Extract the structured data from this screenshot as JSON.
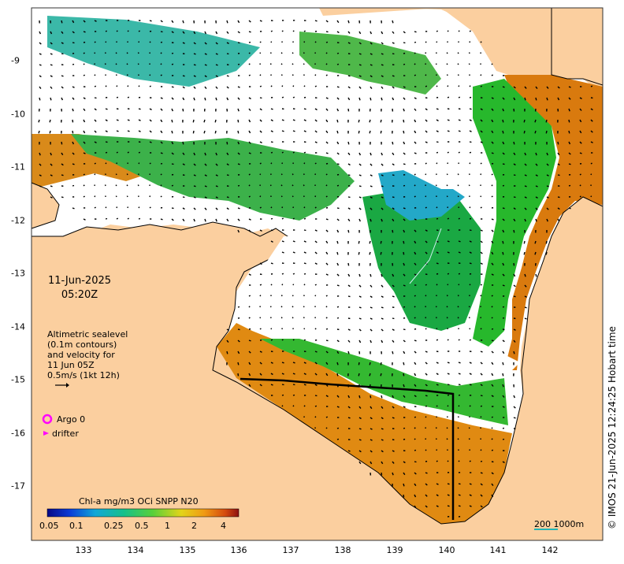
{
  "map": {
    "date_line1": "11-Jun-2025",
    "date_line2": "05:20Z",
    "legend_lines": [
      "Altimetric sealevel",
      "(0.1m contours)",
      "and velocity for",
      "11 Jun 05Z",
      "0.5m/s (1kt 12h)"
    ],
    "argo_label": "Argo 0",
    "drifter_label": "drifter",
    "colorbar_title": "Chl-a mg/m3 OCi SNPP N20",
    "colorbar_ticks": [
      "0.05",
      "0.1",
      "0.25",
      "0.5",
      "1",
      "2",
      "4"
    ],
    "scale_label": "200 1000m",
    "credit": "© IMOS 21-Jun-2025 12:24:25 Hobart time",
    "x_ticks": [
      "133",
      "134",
      "135",
      "136",
      "137",
      "138",
      "139",
      "140",
      "141",
      "142"
    ],
    "y_ticks": [
      "-9",
      "-10",
      "-11",
      "-12",
      "-13",
      "-14",
      "-15",
      "-16",
      "-17"
    ],
    "colors": {
      "land": "#fbcf9f",
      "ocean_no_data": "#ffffff",
      "high_chl": "#d97a0e",
      "mid_chl": "#27b82c",
      "low_chl": "#23a8c8",
      "argo": "#ff00ff"
    }
  }
}
